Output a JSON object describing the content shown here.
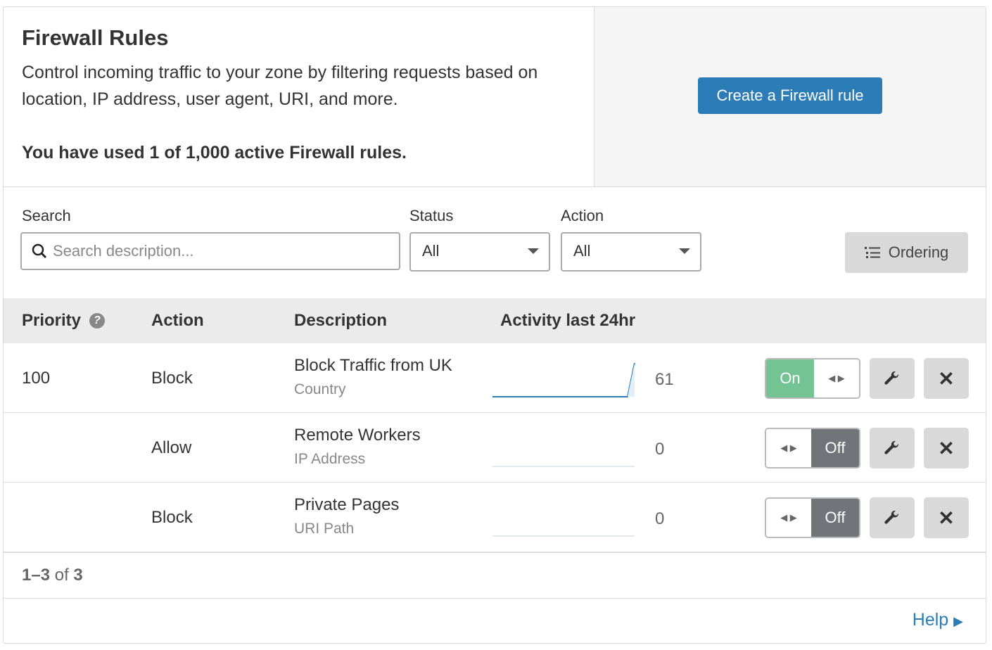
{
  "header": {
    "title": "Firewall Rules",
    "description": "Control incoming traffic to your zone by filtering requests based on location, IP address, user agent, URI, and more.",
    "usage": "You have used 1 of 1,000 active Firewall rules.",
    "create_button": "Create a Firewall rule"
  },
  "filters": {
    "search_label": "Search",
    "search_placeholder": "Search description...",
    "status_label": "Status",
    "status_value": "All",
    "action_label": "Action",
    "action_value": "All",
    "ordering_button": "Ordering"
  },
  "table": {
    "headers": [
      "Priority",
      "Action",
      "Description",
      "Activity last 24hr"
    ],
    "rows": [
      {
        "priority": "100",
        "action": "Block",
        "title": "Block Traffic from UK",
        "subtitle": "Country",
        "count": "61",
        "status": "On",
        "enabled": true
      },
      {
        "priority": "",
        "action": "Allow",
        "title": "Remote Workers",
        "subtitle": "IP Address",
        "count": "0",
        "status": "Off",
        "enabled": false
      },
      {
        "priority": "",
        "action": "Block",
        "title": "Private Pages",
        "subtitle": "URI Path",
        "count": "0",
        "status": "Off",
        "enabled": false
      }
    ]
  },
  "pagination": {
    "range": "1–3",
    "of": "of",
    "total": "3"
  },
  "footer": {
    "help": "Help"
  },
  "colors": {
    "primary": "#2c7cb8",
    "on": "#74c493",
    "off": "#717579",
    "sparkline": "#2c7cb8"
  }
}
